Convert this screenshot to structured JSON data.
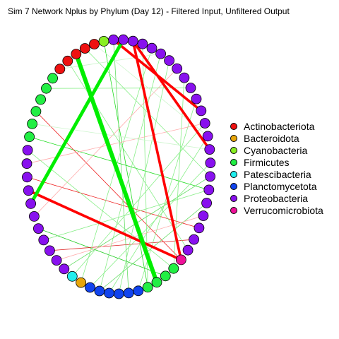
{
  "title": "Sim 7 Network Nplus by Phylum (Day 12) - Filtered Input, Unfiltered Output",
  "legend": [
    {
      "label": "Actinobacteriota",
      "color": "#ee1111"
    },
    {
      "label": "Bacteroidota",
      "color": "#e8a60a"
    },
    {
      "label": "Cyanobacteria",
      "color": "#88ee22"
    },
    {
      "label": "Firmicutes",
      "color": "#22ee44"
    },
    {
      "label": "Patescibacteria",
      "color": "#22eeee"
    },
    {
      "label": "Planctomycetota",
      "color": "#1144ee"
    },
    {
      "label": "Proteobacteria",
      "color": "#8811ee"
    },
    {
      "label": "Verrucomicrobiota",
      "color": "#ee1199"
    }
  ],
  "nodes": [
    "Proteobacteria",
    "Proteobacteria",
    "Proteobacteria",
    "Proteobacteria",
    "Proteobacteria",
    "Proteobacteria",
    "Proteobacteria",
    "Proteobacteria",
    "Proteobacteria",
    "Proteobacteria",
    "Proteobacteria",
    "Proteobacteria",
    "Proteobacteria",
    "Proteobacteria",
    "Proteobacteria",
    "Proteobacteria",
    "Proteobacteria",
    "Proteobacteria",
    "Proteobacteria",
    "Proteobacteria",
    "Proteobacteria",
    "Verrucomicrobiota",
    "Firmicutes",
    "Firmicutes",
    "Firmicutes",
    "Firmicutes",
    "Planctomycetota",
    "Planctomycetota",
    "Planctomycetota",
    "Planctomycetota",
    "Planctomycetota",
    "Planctomycetota",
    "Bacteroidota",
    "Patescibacteria",
    "Proteobacteria",
    "Proteobacteria",
    "Proteobacteria",
    "Proteobacteria",
    "Proteobacteria",
    "Proteobacteria",
    "Proteobacteria",
    "Proteobacteria",
    "Proteobacteria",
    "Proteobacteria",
    "Proteobacteria",
    "Firmicutes",
    "Firmicutes",
    "Firmicutes",
    "Firmicutes",
    "Firmicutes",
    "Firmicutes",
    "Actinobacteriota",
    "Actinobacteriota",
    "Actinobacteriota",
    "Actinobacteriota",
    "Actinobacteriota",
    "Cyanobacteria",
    "Proteobacteria",
    "Proteobacteria"
  ],
  "edges": [
    {
      "from": 0,
      "to": 12,
      "color": "#ff0000",
      "weight": 3
    },
    {
      "from": 0,
      "to": 21,
      "color": "#ff0000",
      "weight": 3
    },
    {
      "from": 57,
      "to": 9,
      "color": "#ff0000",
      "weight": 3
    },
    {
      "from": 41,
      "to": 21,
      "color": "#ff0000",
      "weight": 3
    },
    {
      "from": 53,
      "to": 24,
      "color": "#00ee00",
      "weight": 5
    },
    {
      "from": 58,
      "to": 40,
      "color": "#00ee00",
      "weight": 4
    },
    {
      "from": 45,
      "to": 15,
      "color": "#22dd22",
      "weight": 1
    },
    {
      "from": 56,
      "to": 25,
      "color": "#22dd22",
      "weight": 1
    },
    {
      "from": 42,
      "to": 18,
      "color": "#ee2222",
      "weight": 1
    },
    {
      "from": 47,
      "to": 21,
      "color": "#ee2222",
      "weight": 1
    },
    {
      "from": 38,
      "to": 23,
      "color": "#22cc22",
      "weight": 1
    },
    {
      "from": 36,
      "to": 19,
      "color": "#dd2222",
      "weight": 1
    },
    {
      "from": 34,
      "to": 14,
      "color": "#66dd66",
      "weight": 1
    },
    {
      "from": 30,
      "to": 16,
      "color": "#66dd66",
      "weight": 1
    },
    {
      "from": 27,
      "to": 57,
      "color": "#66dd66",
      "weight": 1
    },
    {
      "from": 29,
      "to": 11,
      "color": "#88ee88",
      "weight": 1
    },
    {
      "from": 28,
      "to": 4,
      "color": "#88ee88",
      "weight": 1
    },
    {
      "from": 32,
      "to": 2,
      "color": "#88ee88",
      "weight": 1
    },
    {
      "from": 31,
      "to": 13,
      "color": "#88ee88",
      "weight": 1
    },
    {
      "from": 26,
      "to": 8,
      "color": "#88ee88",
      "weight": 1
    },
    {
      "from": 22,
      "to": 6,
      "color": "#88ee88",
      "weight": 1
    },
    {
      "from": 25,
      "to": 1,
      "color": "#88ee88",
      "weight": 1
    },
    {
      "from": 33,
      "to": 10,
      "color": "#88ee88",
      "weight": 1
    },
    {
      "from": 37,
      "to": 15,
      "color": "#88ee88",
      "weight": 1
    },
    {
      "from": 39,
      "to": 5,
      "color": "#ffaaaa",
      "weight": 1
    },
    {
      "from": 43,
      "to": 10,
      "color": "#ffaaaa",
      "weight": 1
    },
    {
      "from": 35,
      "to": 17,
      "color": "#ffaaaa",
      "weight": 1
    },
    {
      "from": 3,
      "to": 30,
      "color": "#88ee88",
      "weight": 1
    },
    {
      "from": 49,
      "to": 7,
      "color": "#88ee88",
      "weight": 1
    },
    {
      "from": 52,
      "to": 20,
      "color": "#88ee88",
      "weight": 1
    },
    {
      "from": 54,
      "to": 14,
      "color": "#88ee88",
      "weight": 1
    },
    {
      "from": 51,
      "to": 3,
      "color": "#ccf5cc",
      "weight": 1
    },
    {
      "from": 55,
      "to": 11,
      "color": "#ccf5cc",
      "weight": 1
    },
    {
      "from": 44,
      "to": 22,
      "color": "#88ee88",
      "weight": 1
    },
    {
      "from": 46,
      "to": 12,
      "color": "#ccf5cc",
      "weight": 1
    }
  ]
}
